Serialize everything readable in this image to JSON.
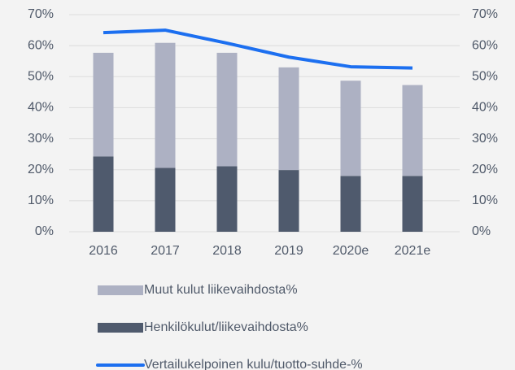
{
  "chart_data": {
    "type": "bar-line",
    "categories": [
      "2016",
      "2017",
      "2018",
      "2019",
      "2020e",
      "2021e"
    ],
    "series": [
      {
        "name": "Muut kulut liikevaihdosta%",
        "type": "bar",
        "color": "#adb1c3",
        "values": [
          33.4,
          40.3,
          36.6,
          33.1,
          30.7,
          29.3
        ]
      },
      {
        "name": "Henkilökulut/liikevaihdosta%",
        "type": "bar",
        "color": "#4f5a6d",
        "values": [
          24.3,
          20.6,
          21.1,
          19.9,
          18.0,
          18.0
        ]
      },
      {
        "name": "Vertailukelpoinen kulu/tuotto-suhde-%",
        "type": "line",
        "axis": "y2",
        "color": "#1c6ff0",
        "values": [
          64.2,
          65.0,
          60.8,
          56.3,
          53.2,
          52.8
        ]
      }
    ],
    "stacked": true,
    "ylim": [
      0,
      70
    ],
    "yticks": [
      {
        "value": 0,
        "label": "0%"
      },
      {
        "value": 10,
        "label": "10%"
      },
      {
        "value": 20,
        "label": "20%"
      },
      {
        "value": 30,
        "label": "30%"
      },
      {
        "value": 40,
        "label": "40%"
      },
      {
        "value": 50,
        "label": "50%"
      },
      {
        "value": 60,
        "label": "60%"
      },
      {
        "value": 70,
        "label": "70%"
      }
    ],
    "y2lim": [
      0,
      70
    ],
    "y2ticks": [
      {
        "value": 0,
        "label": "0%"
      },
      {
        "value": 10,
        "label": "10%"
      },
      {
        "value": 20,
        "label": "20%"
      },
      {
        "value": 30,
        "label": "30%"
      },
      {
        "value": 40,
        "label": "40%"
      },
      {
        "value": 50,
        "label": "50%"
      },
      {
        "value": 60,
        "label": "60%"
      },
      {
        "value": 70,
        "label": "70%"
      }
    ],
    "grid": true
  }
}
